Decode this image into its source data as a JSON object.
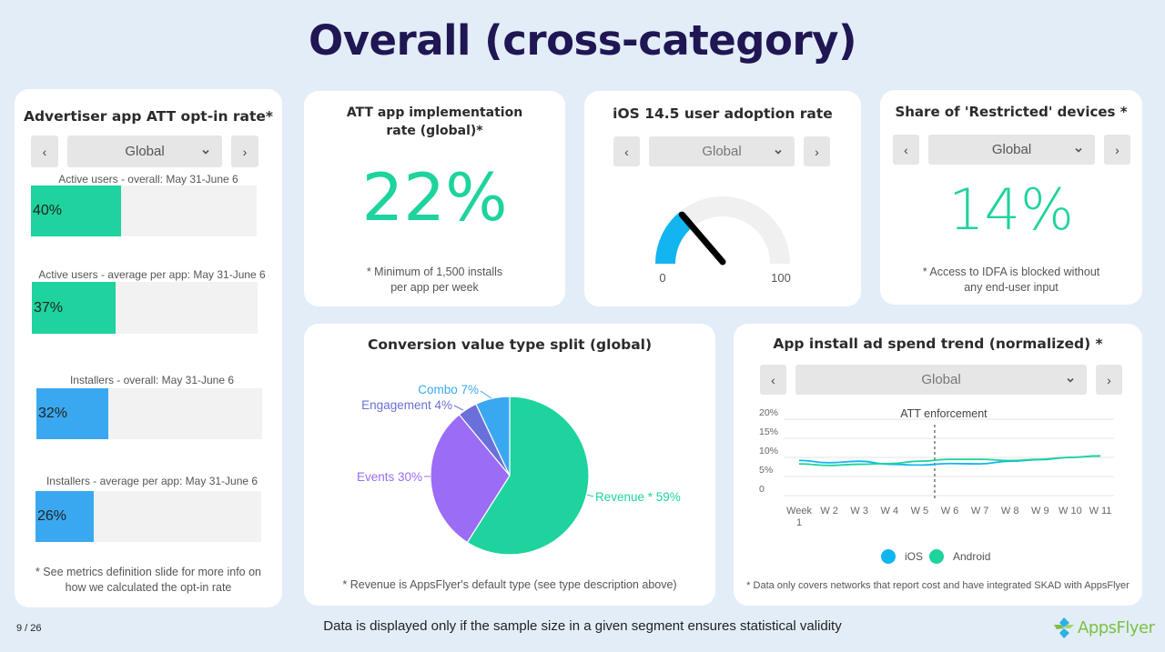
{
  "page": {
    "title": "Overall (cross-category)",
    "page_number": "9 / 26",
    "footer_note": "Data is displayed only if the sample size in a given segment ensures statistical validity",
    "logo_text": "AppsFlyer"
  },
  "colors": {
    "title": "#1f1653",
    "green": "#1ed39d",
    "blue": "#3aa8f0",
    "ios_blue": "#12b5ef",
    "purple": "#9b6cf6",
    "indigo": "#6a6fd9",
    "track": "#f2f2f2"
  },
  "optin_card": {
    "title": "Advertiser app ATT opt-in rate*",
    "selector": {
      "prev": "‹",
      "value": "Global",
      "next": "›"
    },
    "bars": [
      {
        "label": "Active users - overall: May 31-June 6",
        "value": 40,
        "display": "40%",
        "color": "green"
      },
      {
        "label": "Active users - average per app: May 31-June 6",
        "value": 37,
        "display": "37%",
        "color": "green"
      },
      {
        "label": "Installers - overall: May 31-June 6",
        "value": 32,
        "display": "32%",
        "color": "blue"
      },
      {
        "label": "Installers - average per app: May 31-June 6",
        "value": 26,
        "display": "26%",
        "color": "blue"
      }
    ],
    "footnote": "* See metrics definition slide for more info on how we calculated the opt-in rate"
  },
  "implementation_card": {
    "title_line1": "ATT app implementation",
    "title_line2": "rate (global)*",
    "value": "22%",
    "footnote_line1": "* Minimum of 1,500 installs",
    "footnote_line2": "per app per week"
  },
  "adoption_card": {
    "title": "iOS 14.5 user adoption rate",
    "selector": {
      "prev": "‹",
      "value": "Global",
      "next": "›"
    },
    "gauge": {
      "value": 28,
      "min": 0,
      "max": 100,
      "min_label": "0",
      "max_label": "100"
    }
  },
  "restricted_card": {
    "title": "Share of 'Restricted' devices *",
    "selector": {
      "prev": "‹",
      "value": "Global",
      "next": "›"
    },
    "value": "14%",
    "footnote_line1": "* Access to IDFA is blocked without",
    "footnote_line2": "any end-user input"
  },
  "pie_card": {
    "title": "Conversion value type split (global)",
    "footnote": "* Revenue is AppsFlyer's default type (see type description above)"
  },
  "trend_card": {
    "title": "App install ad spend trend (normalized) *",
    "selector": {
      "prev": "‹",
      "value": "Global",
      "next": "›"
    },
    "footnote": "* Data only covers networks that report cost and have integrated SKAD with AppsFlyer"
  },
  "chart_data": [
    {
      "type": "bar",
      "title": "Advertiser app ATT opt-in rate*",
      "categories": [
        "Active users - overall: May 31-June 6",
        "Active users - average per app: May 31-June 6",
        "Installers - overall: May 31-June 6",
        "Installers - average per app: May 31-June 6"
      ],
      "values": [
        40,
        37,
        32,
        26
      ],
      "ylim": [
        0,
        100
      ],
      "orientation": "horizontal"
    },
    {
      "type": "gauge",
      "title": "iOS 14.5 user adoption rate",
      "value": 28,
      "range": [
        0,
        100
      ]
    },
    {
      "type": "pie",
      "title": "Conversion value type split (global)",
      "slices": [
        {
          "label": "Revenue * 59%",
          "name": "Revenue",
          "value": 59,
          "color": "#1ed39d"
        },
        {
          "label": "Events 30%",
          "name": "Events",
          "value": 30,
          "color": "#9b6cf6"
        },
        {
          "label": "Engagement 4%",
          "name": "Engagement",
          "value": 4,
          "color": "#6a6fd9"
        },
        {
          "label": "Combo 7%",
          "name": "Combo",
          "value": 7,
          "color": "#3aa8f0"
        }
      ]
    },
    {
      "type": "line",
      "title": "App install ad spend trend (normalized) *",
      "x": [
        "Week 1",
        "W 2",
        "W 3",
        "W 4",
        "W 5",
        "W 6",
        "W 7",
        "W 8",
        "W 9",
        "W 10",
        "W 11"
      ],
      "series": [
        {
          "name": "iOS",
          "color": "#12b5ef",
          "values": [
            9.2,
            8.6,
            9.0,
            8.2,
            8.0,
            8.4,
            8.3,
            9.0,
            9.4,
            10.0,
            10.4
          ]
        },
        {
          "name": "Android",
          "color": "#1ed39d",
          "values": [
            8.3,
            7.9,
            8.2,
            8.4,
            9.0,
            9.5,
            9.5,
            9.2,
            9.5,
            10.0,
            10.4
          ]
        }
      ],
      "yticks": [
        "0",
        "5%",
        "10%",
        "15%",
        "20%"
      ],
      "ylim": [
        0,
        20
      ],
      "annotation": {
        "label": "ATT enforcement",
        "x_between": [
          "W 5",
          "W 6"
        ]
      },
      "legend": [
        "iOS",
        "Android"
      ],
      "legend_position": "bottom",
      "grid": true
    }
  ]
}
